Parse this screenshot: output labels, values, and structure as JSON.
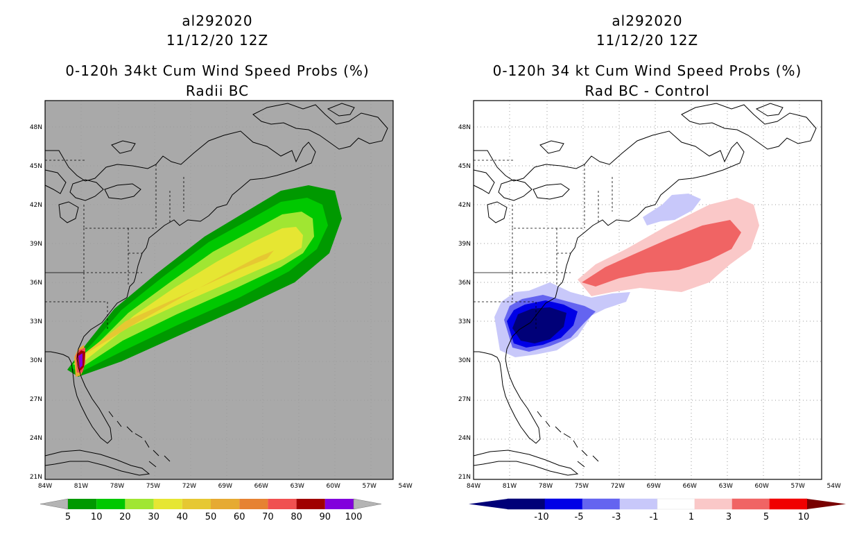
{
  "left": {
    "storm_id": "al292020",
    "datetime": "11/12/20 12Z",
    "product": "0-120h 34kt Cum Wind Speed Probs (%)",
    "subtitle": "Radii BC",
    "background": "#a9a9a9",
    "lat_labels": [
      "48N",
      "45N",
      "42N",
      "39N",
      "36N",
      "33N",
      "30N",
      "27N",
      "24N",
      "21N"
    ],
    "lon_labels": [
      "84W",
      "81W",
      "78W",
      "75W",
      "72W",
      "69W",
      "66W",
      "63W",
      "60W",
      "57W",
      "54W"
    ],
    "colorbar": {
      "labels": [
        "5",
        "10",
        "20",
        "30",
        "40",
        "50",
        "60",
        "70",
        "80",
        "90",
        "100"
      ],
      "colors": [
        "#009900",
        "#00c800",
        "#a0e632",
        "#e6e632",
        "#e6c832",
        "#e6aa32",
        "#e68232",
        "#f05050",
        "#a00000",
        "#8200dc"
      ],
      "end_color": "#b4b4b4"
    }
  },
  "right": {
    "storm_id": "al292020",
    "datetime": "11/12/20 12Z",
    "product": "0-120h 34 kt Cum Wind Speed Probs (%)",
    "subtitle": "Rad BC - Control",
    "background": "#ffffff",
    "lat_labels": [
      "48N",
      "45N",
      "42N",
      "39N",
      "36N",
      "33N",
      "30N",
      "27N",
      "24N",
      "21N"
    ],
    "lon_labels": [
      "84W",
      "81W",
      "78W",
      "75W",
      "72W",
      "69W",
      "66W",
      "63W",
      "60W",
      "57W",
      "54W"
    ],
    "colorbar": {
      "labels": [
        "-10",
        "-5",
        "-3",
        "-1",
        "1",
        "3",
        "5",
        "10"
      ],
      "colors": [
        "#000078",
        "#0000e6",
        "#6464f0",
        "#c8c8fa",
        "#ffffff",
        "#fac8c8",
        "#f06464",
        "#f00000"
      ],
      "end_left": "#000078",
      "end_right": "#780000"
    }
  }
}
